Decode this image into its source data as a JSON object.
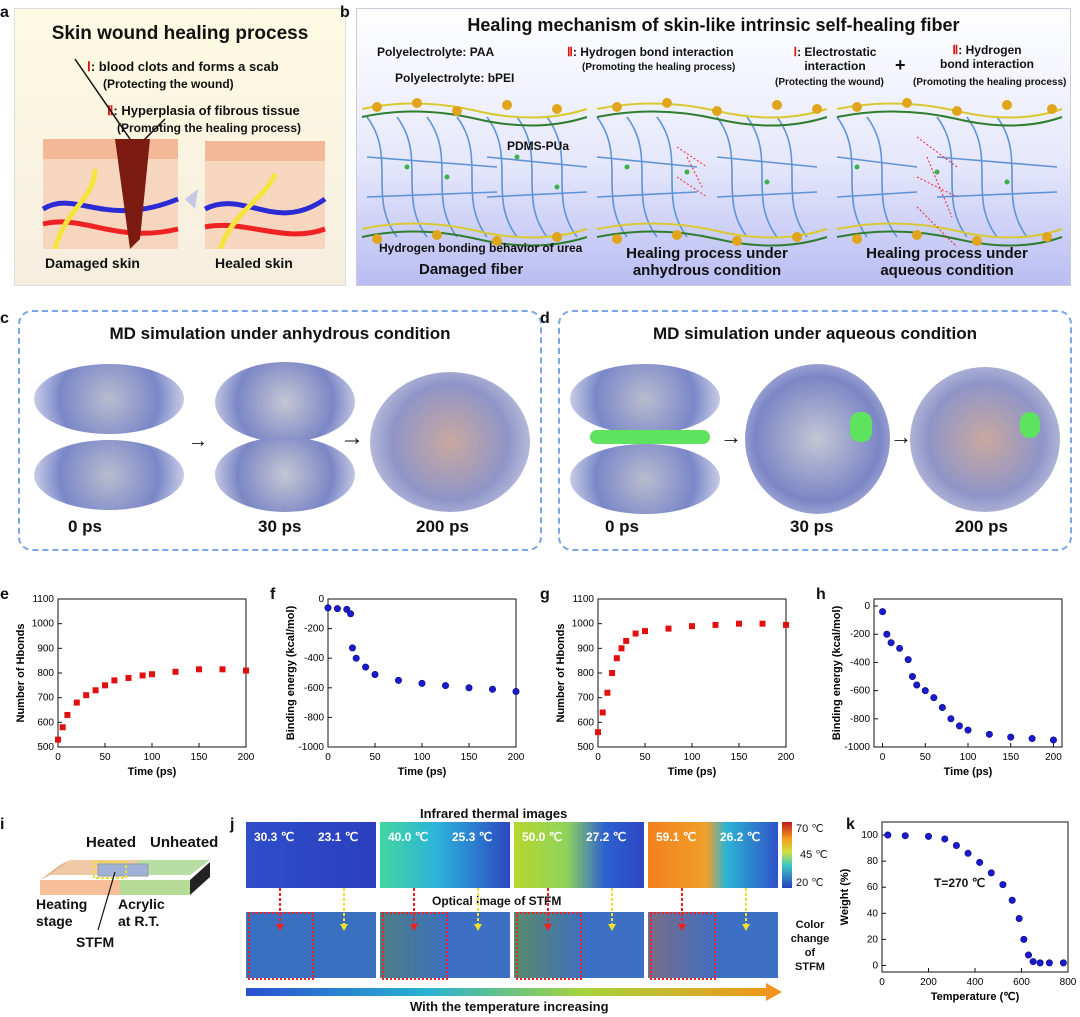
{
  "panels": {
    "a": {
      "label": "a",
      "title": "Skin wound healing process",
      "item1_num": "Ⅰ",
      "item1_text": ": blood clots and forms a scab",
      "item1_sub": "(Protecting the wound)",
      "item2_num": "Ⅱ",
      "item2_text": ": Hyperplasia of fibrous tissue",
      "item2_sub": "(Promoting the healing process)",
      "left_caption": "Damaged skin",
      "right_caption": "Healed skin"
    },
    "b": {
      "label": "b",
      "title": "Healing mechanism of skin-like intrinsic self-healing fiber",
      "paa": "Polyelectrolyte: PAA",
      "bpei": "Polyelectrolyte: bPEI",
      "pdms": "PDMS-PUa",
      "hbond_urea": "Hydrogen bonding behavior of urea",
      "hbond_interaction_num": "Ⅱ",
      "hbond_interaction": ": Hydrogen bond interaction",
      "hbond_interaction_sub": "(Promoting the healing process)",
      "electro_num": "Ⅰ",
      "electro_1": ": Electrostatic",
      "electro_2": "interaction",
      "electro_sub": "(Protecting the wound)",
      "plus": "+",
      "hb2_num": "Ⅱ",
      "hb2_1": ": Hydrogen",
      "hb2_2": "bond interaction",
      "hb2_sub": "(Promoting the healing process)",
      "cap1": "Damaged fiber",
      "cap2_1": "Healing process under",
      "cap2_2": "anhydrous condition",
      "cap3_1": "Healing process under",
      "cap3_2": "aqueous condition"
    },
    "c": {
      "label": "c",
      "title": "MD simulation under anhydrous condition",
      "t0": "0 ps",
      "t1": "30 ps",
      "t2": "200 ps"
    },
    "d": {
      "label": "d",
      "title": "MD simulation under aqueous condition",
      "t0": "0 ps",
      "t1": "30 ps",
      "t2": "200 ps"
    },
    "i": {
      "label": "i",
      "heated": "Heated",
      "unheated": "Unheated",
      "heating_stage_1": "Heating",
      "heating_stage_2": "stage",
      "acrylic_1": "Acrylic",
      "acrylic_2": "at R.T.",
      "stfm": "STFM"
    },
    "j": {
      "label": "j",
      "ir_title": "Infrared thermal images",
      "opt_title": "Optical image of STFM",
      "temps": [
        {
          "heated": "30.3 ℃",
          "unheated": "23.1 ℃"
        },
        {
          "heated": "40.0 ℃",
          "unheated": "25.3 ℃"
        },
        {
          "heated": "50.0 ℃",
          "unheated": "27.2 ℃"
        },
        {
          "heated": "59.1 ℃",
          "unheated": "26.2 ℃"
        }
      ],
      "scale_top": "70 ℃",
      "scale_mid": "45 ℃",
      "scale_bot": "20 ℃",
      "color_change_1": "Color",
      "color_change_2": "change",
      "color_change_3": "of",
      "color_change_4": "STFM",
      "arrow_caption": "With the temperature increasing"
    },
    "k": {
      "label": "k",
      "annotation": "T=270 ℃"
    },
    "e": {
      "label": "e"
    },
    "f": {
      "label": "f"
    },
    "g": {
      "label": "g"
    },
    "h": {
      "label": "h"
    }
  },
  "chart_data": [
    {
      "id": "e",
      "type": "scatter",
      "color": "#e01010",
      "xlabel": "Time (ps)",
      "ylabel": "Number of Hbonds",
      "xlim": [
        0,
        200
      ],
      "ylim": [
        500,
        1100
      ],
      "xticks": [
        0,
        50,
        100,
        150,
        200
      ],
      "yticks": [
        500,
        600,
        700,
        800,
        900,
        1000,
        1100
      ],
      "x": [
        0,
        5,
        10,
        20,
        30,
        40,
        50,
        60,
        75,
        90,
        100,
        125,
        150,
        175,
        200
      ],
      "y": [
        530,
        580,
        630,
        680,
        710,
        730,
        750,
        770,
        780,
        790,
        795,
        805,
        815,
        815,
        810
      ]
    },
    {
      "id": "f",
      "type": "scatter",
      "color": "#1a1ad0",
      "xlabel": "Time (ps)",
      "ylabel": "Binding energy (kcal/mol)",
      "xlim": [
        0,
        200
      ],
      "ylim": [
        -1000,
        0
      ],
      "xticks": [
        0,
        50,
        100,
        150,
        200
      ],
      "yticks": [
        -1000,
        -800,
        -600,
        -400,
        -200,
        0
      ],
      "x": [
        0,
        10,
        20,
        24,
        26,
        30,
        40,
        50,
        75,
        100,
        125,
        150,
        175,
        200
      ],
      "y": [
        -60,
        -65,
        -70,
        -100,
        -330,
        -400,
        -460,
        -510,
        -550,
        -570,
        -585,
        -600,
        -610,
        -625
      ]
    },
    {
      "id": "g",
      "type": "scatter",
      "color": "#e01010",
      "xlabel": "Time (ps)",
      "ylabel": "Number of Hbonds",
      "xlim": [
        0,
        200
      ],
      "ylim": [
        500,
        1100
      ],
      "xticks": [
        0,
        50,
        100,
        150,
        200
      ],
      "yticks": [
        500,
        600,
        700,
        800,
        900,
        1000,
        1100
      ],
      "x": [
        0,
        5,
        10,
        15,
        20,
        25,
        30,
        40,
        50,
        75,
        100,
        125,
        150,
        175,
        200
      ],
      "y": [
        560,
        640,
        720,
        800,
        860,
        900,
        930,
        960,
        970,
        980,
        990,
        995,
        1000,
        1000,
        995
      ]
    },
    {
      "id": "h",
      "type": "scatter",
      "color": "#1a1ad0",
      "xlabel": "Time (ps)",
      "ylabel": "Binding energy (kcal/mol)",
      "xlim": [
        -10,
        210
      ],
      "ylim": [
        -1000,
        50
      ],
      "xticks": [
        0,
        50,
        100,
        150,
        200
      ],
      "yticks": [
        -1000,
        -800,
        -600,
        -400,
        -200,
        0
      ],
      "x": [
        0,
        5,
        10,
        20,
        30,
        35,
        40,
        50,
        60,
        70,
        80,
        90,
        100,
        125,
        150,
        175,
        200
      ],
      "y": [
        -40,
        -200,
        -260,
        -300,
        -380,
        -500,
        -560,
        -600,
        -650,
        -720,
        -800,
        -850,
        -880,
        -910,
        -930,
        -940,
        -950
      ]
    },
    {
      "id": "k",
      "type": "scatter",
      "color": "#1a1ad0",
      "xlabel": "Temperature (℃)",
      "ylabel": "Weight (%)",
      "xlim": [
        0,
        800
      ],
      "ylim": [
        -5,
        110
      ],
      "xticks": [
        0,
        200,
        400,
        600,
        800
      ],
      "yticks": [
        0,
        20,
        40,
        60,
        80,
        100
      ],
      "x": [
        25,
        100,
        200,
        270,
        320,
        370,
        420,
        470,
        520,
        560,
        590,
        610,
        630,
        650,
        680,
        720,
        780
      ],
      "y": [
        100,
        99.5,
        99,
        97,
        92,
        86,
        79,
        71,
        62,
        50,
        36,
        20,
        8,
        3,
        2,
        2,
        2
      ]
    }
  ]
}
